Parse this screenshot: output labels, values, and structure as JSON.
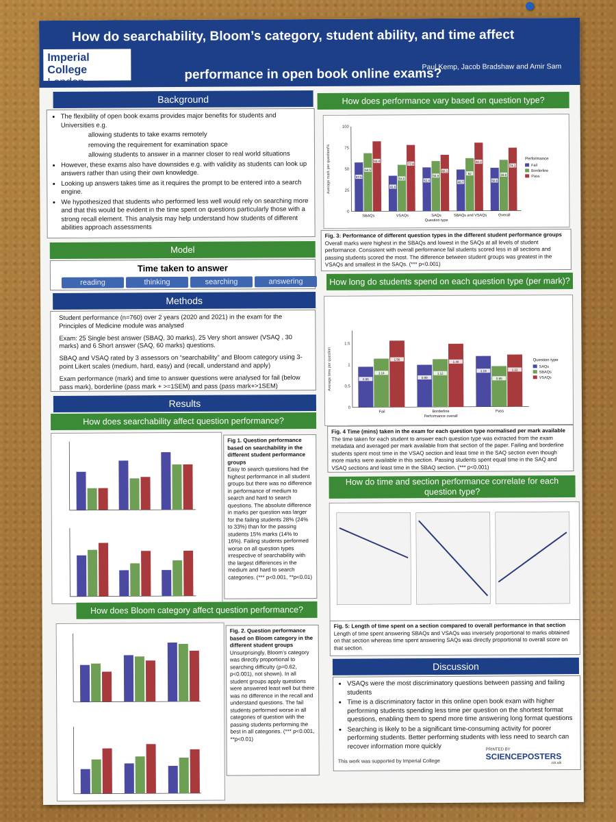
{
  "header": {
    "title_line1": "How do searchability, Bloom’s category, student ability, and time affect",
    "title_line2": "performance in open book online exams?",
    "logo_line1": "Imperial College",
    "logo_line2": "London",
    "authors": "Paul Kemp, Jacob Bradshaw and Amir Sam"
  },
  "background": {
    "heading": "Background",
    "items": [
      {
        "text": "The flexibility of open book exams provides major benefits for students and Universities e.g.",
        "sub": false
      },
      {
        "text": "allowing students to take exams remotely",
        "sub": true
      },
      {
        "text": "removing the requirement for examination space",
        "sub": true
      },
      {
        "text": "allowing students to answer in a manner closer to real world situations",
        "sub": true
      },
      {
        "text": "However, these exams also have downsides e.g. with validity as students can look up answers rather than using their own knowledge.",
        "sub": false
      },
      {
        "text": "Looking up answers takes time as it requires the prompt to be entered into a search engine.",
        "sub": false
      },
      {
        "text": "We hypothesized that students who performed less well would rely on searching more and that this would be evident in the time spent on questions particularly those with a strong recall element. This analysis may help understand how students of different abilities approach assessments",
        "sub": false
      }
    ]
  },
  "model": {
    "heading": "Model",
    "title": "Time taken to answer",
    "steps": [
      "reading",
      "thinking",
      "searching",
      "answering"
    ]
  },
  "methods": {
    "heading": "Methods",
    "paragraphs": [
      "Student performance (n=760) over 2 years (2020 and 2021) in the exam for the Principles of Medicine module was analysed",
      "Exam: 25 Single best answer (SBAQ, 30 marks), 25 Very short answer (VSAQ , 30 marks) and 6 Short answer (SAQ, 60 marks) questions.",
      "SBAQ and VSAQ rated by 3 assessors on “searchability” and Bloom category using 3-point Likert scales (medium, hard, easy) and (recall, understand and apply)",
      "Exam performance (mark) and time to answer questions were analysed for fail (below pass mark), borderline (pass mark + >=1SEM) and pass (pass mark+>1SEM)"
    ]
  },
  "results": {
    "heading": "Results",
    "searchability": {
      "heading": "How does searchability affect question performance?",
      "caption_title": "Fig 1. Question performance based on searchability in the different student performance groups",
      "caption_body": "Easy to search questions had the highest performance in all student groups but there was no difference in performance of medium to search and hard to search questions. The absolute difference in marks per question was larger for the failing students 28% (24% to 33%) than for the passing students 15% marks (14% to 16%). Failing students performed worse on all question types irrespective of searchability with the largest differences in the medium and hard to search categories.",
      "caption_sig": "(*** p<0.001, **p<0.01)"
    },
    "bloom": {
      "heading": "How does Bloom category affect question performance?",
      "caption_title": "Fig. 2. Question performance based on Bloom category in the different student groups",
      "caption_body": "Unsurprisingly, Bloom’s category was directly proportional to searching difficulty (ρ=0.62, p<0.001), not shown). In all student groups apply questions were answered least well but there was no difference in the recall and understand questions. The fail students performed worse in all categories of question with the passing students performing the best in all categories.",
      "caption_sig": "(*** p<0.001, **p<0.01)"
    },
    "question_type": {
      "heading": "How does performance vary based on question type?",
      "caption_title": "Fig. 3: Performance of different question types in the different student performance groups",
      "caption_body": "Overall marks were highest in the SBAQs and lowest in the SAQs at all levels of student performance. Consistent with overall performance fail students scored less in all sections and passing students scored the most. The difference between student groups was greatest in the VSAQs and smallest in the SAQs.",
      "caption_sig": "(*** p<0.001)"
    },
    "time_per_mark": {
      "heading": "How long do students spend on each question type (per mark)?",
      "caption_title": "Fig. 4 Time (mins) taken in the exam for each question type normalised per mark available",
      "caption_body": "The time taken for each student to answer each question type was extracted from the exam metadata and averaged per mark available from that section of the paper. Failing and borderline students spent most time in the VSAQ section and least time in the SAQ section even though more marks were available in this section. Passing students spent equal time in the SAQ and VSAQ sections and least time in the SBAQ section.",
      "caption_sig": "(*** p<0.001)"
    },
    "correlation": {
      "heading": "How do time and section performance correlate for each question type?",
      "caption_title": "Fig. 5: Length of time spent on a section compared to overall performance in that section",
      "caption_body": "Length of time spent answering SBAQs and VSAQs was inversely proportional to marks obtained on that section whereas time spent answering SAQs was directly proportional to overall score on that section."
    }
  },
  "discussion": {
    "heading": "Discussion",
    "items": [
      "VSAQs were the most discriminatory questions between passing and failing students",
      "Time is a discriminatory factor in this online open book exam with higher performing students spending less time per question on the shortest format questions, enabling them to spend more time answering long format questions",
      "Searching is likely to be a significant time-consuming activity for poorer performing students. Better performing students with less need to search can recover information more quickly"
    ],
    "credit": "This work was supported by Imperial College",
    "printer_line1": "PRINTED BY",
    "printer_name": "SCIENCEPOSTERS",
    "printer_domain": ".co.uk"
  },
  "colors": {
    "fail": "#4b4aa3",
    "borderline": "#6f9e55",
    "pass": "#a83a3e",
    "header": "#1d3f88",
    "section_green": "#3b8a35"
  },
  "chart_data": [
    {
      "type": "bar",
      "id": "fig3",
      "categories": [
        "SBAQs",
        "VSAQs",
        "SAQs",
        "SBAQs and VSAQs",
        "Overall"
      ],
      "xlabel": "Question type",
      "ylabel": "Average mark per question/%",
      "ylim": [
        0,
        100
      ],
      "legend_title": "Performance",
      "series": [
        {
          "name": "Fail",
          "values": [
            57.6,
            41.8,
            51.4,
            48.7,
            50.6
          ]
        },
        {
          "name": "Borderline",
          "values": [
            68.5,
            54.6,
            58.8,
            62.0,
            59.8
          ]
        },
        {
          "name": "Pass",
          "values": [
            82.4,
            77.9,
            66.1,
            80.2,
            74.1
          ]
        }
      ]
    },
    {
      "type": "bar",
      "id": "fig4",
      "categories": [
        "Fail",
        "Borderline",
        "Pass"
      ],
      "xlabel": "Performance overall",
      "ylabel": "Average time per question",
      "ylim": [
        0,
        1.8
      ],
      "legend_title": "Question type",
      "series": [
        {
          "name": "SAQs",
          "values": [
            0.95,
            0.99,
            1.19
          ]
        },
        {
          "name": "SBAQs",
          "values": [
            1.14,
            1.12,
            0.95
          ]
        },
        {
          "name": "VSAQs",
          "values": [
            1.56,
            1.48,
            1.22
          ]
        }
      ]
    }
  ]
}
